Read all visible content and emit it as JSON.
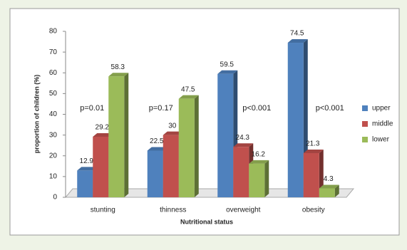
{
  "chart_data": {
    "type": "bar",
    "categories": [
      "stunting",
      "thinness",
      "overweight",
      "obesity"
    ],
    "series": [
      {
        "name": "upper",
        "color": "#4f81bd",
        "values": [
          12.9,
          22.5,
          59.5,
          74.5
        ]
      },
      {
        "name": "middle",
        "color": "#c0504d",
        "values": [
          29.2,
          30,
          24.3,
          21.3
        ]
      },
      {
        "name": "lower",
        "color": "#9bbb59",
        "values": [
          58.3,
          47.5,
          16.2,
          4.3
        ]
      }
    ],
    "annotations": [
      "p=0.01",
      "p=0.17",
      "p<0.001",
      "p<0.001"
    ],
    "y_label": "proportion of children (%)",
    "x_label": "Nutritional status",
    "ylim": [
      0,
      80
    ],
    "yticks": [
      0,
      10,
      20,
      30,
      40,
      50,
      60,
      70,
      80
    ],
    "legend": "right"
  }
}
